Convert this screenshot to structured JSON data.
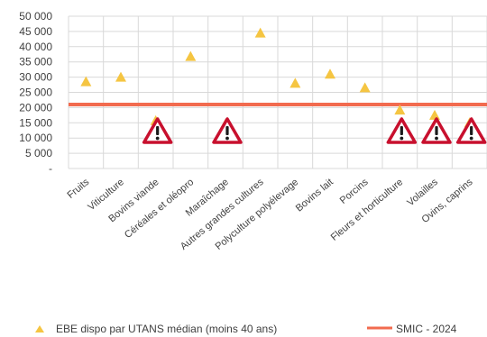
{
  "chart_data": {
    "type": "scatter",
    "categories": [
      "Fruits",
      "Viticulture",
      "Bovins viande",
      "Céréales et oléopro",
      "Maraîchage",
      "Autres grandes cultures",
      "Polyculture polyélevage",
      "Bovins lait",
      "Porcins",
      "Fleurs et horticulture",
      "Volailles",
      "Ovins, caprins"
    ],
    "series": [
      {
        "name": "EBE dispo par UTANS médian (moins 40 ans)",
        "marker": "triangle",
        "color": "#f5c542",
        "values": [
          28500,
          30000,
          15700,
          36800,
          14600,
          44500,
          28000,
          31000,
          26500,
          19200,
          17500,
          15000
        ]
      }
    ],
    "reference_line": {
      "name": "SMIC - 2024",
      "value": 21000,
      "color": "#f26b4f"
    },
    "warnings_at": [
      "Bovins viande",
      "Maraîchage",
      "Fleurs et horticulture",
      "Volailles",
      "Ovins, caprins"
    ],
    "ylim": [
      0,
      50000
    ],
    "yticks": [
      0,
      5000,
      10000,
      15000,
      20000,
      25000,
      30000,
      35000,
      40000,
      45000,
      50000
    ],
    "ytick_labels": [
      "-",
      "5 000",
      "10 000",
      "15 000",
      "20 000",
      "25 000",
      "30 000",
      "35 000",
      "40 000",
      "45 000",
      "50 000"
    ],
    "grid": "horizontal and vertical",
    "legend_position": "bottom"
  }
}
